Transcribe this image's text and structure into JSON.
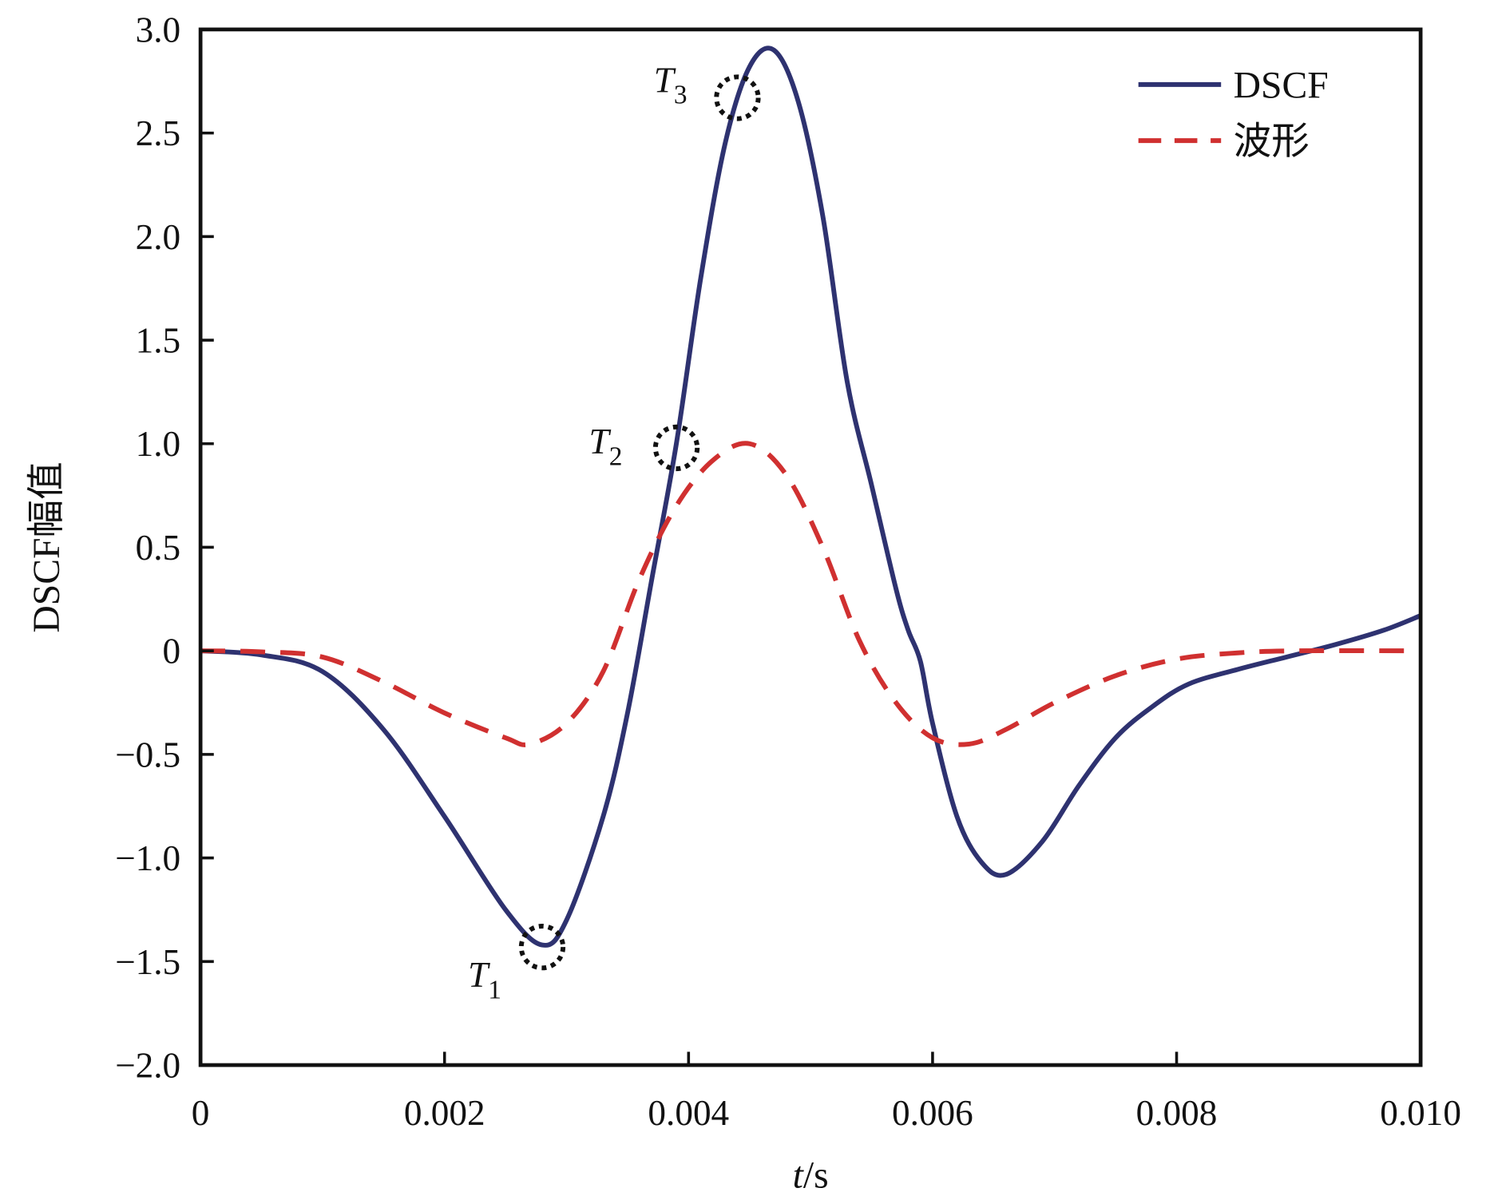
{
  "chart_data": {
    "type": "line",
    "title": "",
    "xlabel_italic": "t",
    "xlabel_unit": "/s",
    "ylabel": "DSCF幅值",
    "xlim": [
      0,
      0.01
    ],
    "ylim": [
      -2.0,
      3.0
    ],
    "xticks": [
      0,
      0.002,
      0.004,
      0.006,
      0.008,
      0.01
    ],
    "xtick_labels": [
      "0",
      "0.002",
      "0.004",
      "0.006",
      "0.008",
      "0.010"
    ],
    "yticks": [
      -2.0,
      -1.5,
      -1.0,
      -0.5,
      0,
      0.5,
      1.0,
      1.5,
      2.0,
      2.5,
      3.0
    ],
    "ytick_labels": [
      "−2.0",
      "−1.5",
      "−1.0",
      "−0.5",
      "0",
      "0.5",
      "1.0",
      "1.5",
      "2.0",
      "2.5",
      "3.0"
    ],
    "grid": false,
    "legend_position": "top-right",
    "series": [
      {
        "name": "DSCF",
        "color": "#2e3270",
        "style": "solid",
        "x": [
          0,
          0.0005,
          0.001,
          0.0015,
          0.002,
          0.0025,
          0.0028,
          0.003,
          0.0033,
          0.0035,
          0.0037,
          0.0039,
          0.0041,
          0.0043,
          0.0045,
          0.0047,
          0.0049,
          0.0051,
          0.0053,
          0.0055,
          0.0057,
          0.0058,
          0.0059,
          0.006,
          0.0062,
          0.0064,
          0.0066,
          0.0069,
          0.0072,
          0.0075,
          0.0078,
          0.0081,
          0.0085,
          0.0089,
          0.0093,
          0.0097,
          0.01
        ],
        "y": [
          0,
          -0.02,
          -0.1,
          -0.38,
          -0.8,
          -1.25,
          -1.42,
          -1.3,
          -0.8,
          -0.3,
          0.35,
          1.0,
          1.8,
          2.45,
          2.82,
          2.9,
          2.65,
          2.1,
          1.3,
          0.8,
          0.3,
          0.1,
          -0.05,
          -0.35,
          -0.8,
          -1.02,
          -1.08,
          -0.92,
          -0.65,
          -0.42,
          -0.27,
          -0.16,
          -0.09,
          -0.03,
          0.03,
          0.1,
          0.17
        ]
      },
      {
        "name": "波形",
        "color": "#d03030",
        "style": "dashed",
        "x": [
          0,
          0.0005,
          0.001,
          0.0015,
          0.002,
          0.0025,
          0.0027,
          0.003,
          0.0033,
          0.0036,
          0.0039,
          0.0042,
          0.0045,
          0.0048,
          0.0051,
          0.0054,
          0.0057,
          0.006,
          0.0063,
          0.0066,
          0.007,
          0.0075,
          0.008,
          0.0085,
          0.009,
          0.01
        ],
        "y": [
          0,
          -0.005,
          -0.03,
          -0.15,
          -0.3,
          -0.42,
          -0.45,
          -0.35,
          -0.1,
          0.35,
          0.7,
          0.92,
          1.0,
          0.85,
          0.5,
          0.05,
          -0.25,
          -0.42,
          -0.45,
          -0.38,
          -0.25,
          -0.12,
          -0.04,
          -0.01,
          0,
          0
        ]
      }
    ],
    "annotations": [
      {
        "label": "T",
        "sub": "1",
        "x": 0.0028,
        "y": -1.43
      },
      {
        "label": "T",
        "sub": "2",
        "x": 0.0039,
        "y": 0.98
      },
      {
        "label": "T",
        "sub": "3",
        "x": 0.0044,
        "y": 2.67
      }
    ]
  }
}
